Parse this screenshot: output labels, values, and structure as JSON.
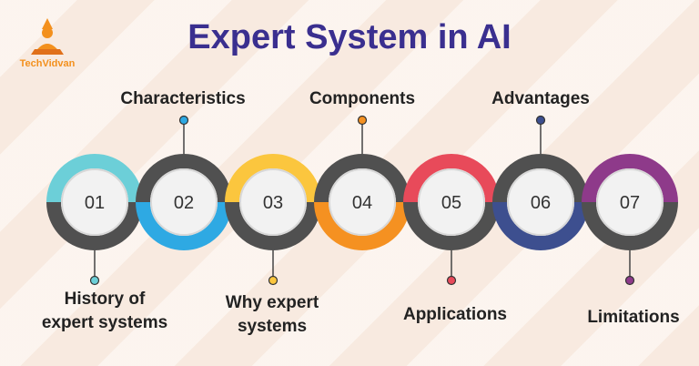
{
  "title": "Expert System in AI",
  "brand": {
    "name": "TechVidvan",
    "logo_icon": "meditation-figure-icon"
  },
  "steps": [
    {
      "number": "01",
      "label_line1": "History of",
      "label_line2": "expert systems",
      "color": "#6ccfd8",
      "label_position": "bottom"
    },
    {
      "number": "02",
      "label_line1": "Characteristics",
      "label_line2": "",
      "color": "#2ea9e3",
      "label_position": "top"
    },
    {
      "number": "03",
      "label_line1": "Why expert",
      "label_line2": "systems",
      "color": "#fbc63e",
      "label_position": "bottom"
    },
    {
      "number": "04",
      "label_line1": "Components",
      "label_line2": "",
      "color": "#f59121",
      "label_position": "top"
    },
    {
      "number": "05",
      "label_line1": "Applications",
      "label_line2": "",
      "color": "#e84a5a",
      "label_position": "bottom"
    },
    {
      "number": "06",
      "label_line1": "Advantages",
      "label_line2": "",
      "color": "#3d4f8f",
      "label_position": "top"
    },
    {
      "number": "07",
      "label_line1": "Limitations",
      "label_line2": "",
      "color": "#8e3a8a",
      "label_position": "bottom"
    }
  ],
  "ring_dark": "#505050"
}
